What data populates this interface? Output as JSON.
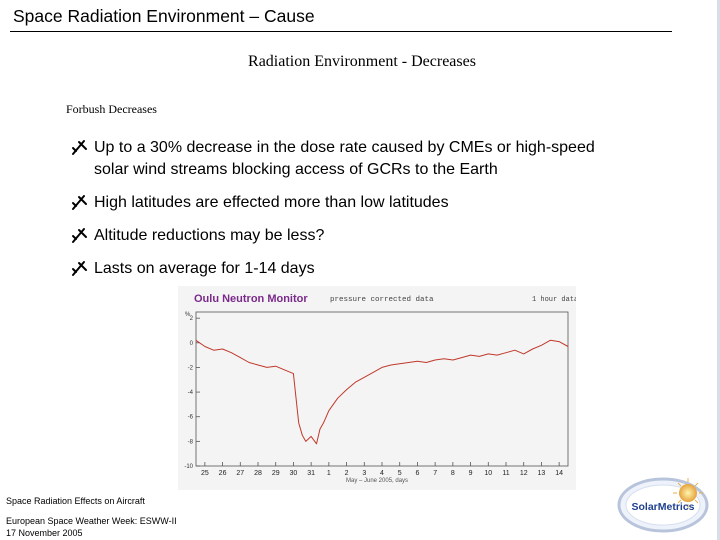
{
  "header": {
    "title": "Space Radiation Environment – Cause"
  },
  "slide": {
    "subtitle": "Radiation Environment - Decreases",
    "section_heading": "Forbush Decreases",
    "bullet_icon": "airplane-icon",
    "bullets": [
      "Up to a 30% decrease in the dose rate caused by CMEs or high-speed solar wind streams blocking access of GCRs to the Earth",
      "High latitudes are effected more than low latitudes",
      "Altitude reductions may be less?",
      "Lasts on average for 1-14 days"
    ]
  },
  "chart_data": {
    "type": "line",
    "title": "Oulu Neutron Monitor",
    "subtitle": "pressure corrected data",
    "note": "1 hour data",
    "xlabel": "May – June 2005, days",
    "ylabel": "%",
    "x_ticks": [
      "25",
      "26",
      "27",
      "28",
      "29",
      "30",
      "31",
      "1",
      "2",
      "3",
      "4",
      "5",
      "6",
      "7",
      "8",
      "9",
      "10",
      "11",
      "12",
      "13",
      "14"
    ],
    "y_ticks": [
      2,
      0,
      -2,
      -4,
      -6,
      -8,
      -10
    ],
    "ylim": [
      -10,
      2.5
    ],
    "xlim": [
      0,
      21
    ],
    "line_color": "#c0392b",
    "grid": false,
    "series": [
      {
        "x": [
          0,
          0.5,
          1,
          1.5,
          2,
          2.5,
          3,
          3.5,
          4,
          4.5,
          5,
          5.5,
          5.8,
          6.0,
          6.2,
          6.5,
          6.8,
          7.0,
          7.2,
          7.5,
          8,
          8.5,
          9,
          9.5,
          10,
          10.5,
          11,
          11.5,
          12,
          12.5,
          13,
          13.5,
          14,
          14.5,
          15,
          15.5,
          16,
          16.5,
          17,
          17.5,
          18,
          18.5,
          19,
          19.5,
          20,
          20.5,
          21
        ],
        "y": [
          0.2,
          -0.3,
          -0.6,
          -0.5,
          -0.8,
          -1.2,
          -1.6,
          -1.8,
          -2.0,
          -1.9,
          -2.2,
          -2.5,
          -6.5,
          -7.5,
          -8.0,
          -7.6,
          -8.2,
          -7.0,
          -6.5,
          -5.5,
          -4.5,
          -3.8,
          -3.2,
          -2.8,
          -2.4,
          -2.0,
          -1.8,
          -1.7,
          -1.6,
          -1.5,
          -1.6,
          -1.4,
          -1.3,
          -1.4,
          -1.2,
          -1.0,
          -1.1,
          -0.9,
          -1.0,
          -0.8,
          -0.6,
          -0.9,
          -0.5,
          -0.2,
          0.2,
          0.1,
          -0.3
        ]
      }
    ]
  },
  "footer": {
    "line1": "Space Radiation Effects on Aircraft",
    "line2": "European Space Weather Week: ESWW-II",
    "line3": "17 November 2005"
  },
  "logo": {
    "text": "SolarMetrics"
  }
}
